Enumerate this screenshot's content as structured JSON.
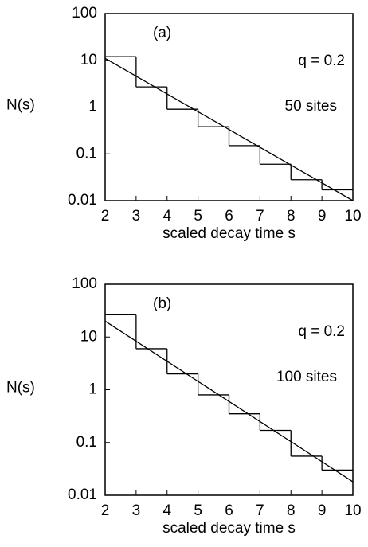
{
  "chart_data": [
    {
      "type": "histogram",
      "annotation": "(a)",
      "parameter": "q  =  0.2",
      "sites": "50 sites",
      "xlabel": "scaled decay time s",
      "ylabel": "N(s)",
      "bins": [
        2,
        3,
        4,
        5,
        6,
        7,
        8,
        9,
        10
      ],
      "values": [
        12,
        2.7,
        0.9,
        0.38,
        0.15,
        0.06,
        0.028,
        0.017
      ],
      "fit": {
        "x": [
          2,
          10
        ],
        "y": [
          11,
          0.01
        ]
      },
      "xlim": [
        2,
        10
      ],
      "xticks": [
        2,
        3,
        4,
        5,
        6,
        7,
        8,
        9,
        10
      ],
      "ylim": [
        0.01,
        100
      ],
      "yticks": [
        0.01,
        0.1,
        1,
        10,
        100
      ],
      "log_y": true,
      "color": "#000000"
    },
    {
      "type": "histogram",
      "annotation": "(b)",
      "parameter": "q  =  0.2",
      "sites": "100 sites",
      "xlabel": "scaled decay time s",
      "ylabel": "N(s)",
      "bins": [
        2,
        3,
        4,
        5,
        6,
        7,
        8,
        9,
        10
      ],
      "values": [
        27,
        6,
        2,
        0.8,
        0.35,
        0.17,
        0.055,
        0.03
      ],
      "fit": {
        "x": [
          2,
          10
        ],
        "y": [
          20,
          0.018
        ]
      },
      "xlim": [
        2,
        10
      ],
      "xticks": [
        2,
        3,
        4,
        5,
        6,
        7,
        8,
        9,
        10
      ],
      "ylim": [
        0.01,
        100
      ],
      "yticks": [
        0.01,
        0.1,
        1,
        10,
        100
      ],
      "log_y": true,
      "color": "#000000"
    }
  ]
}
